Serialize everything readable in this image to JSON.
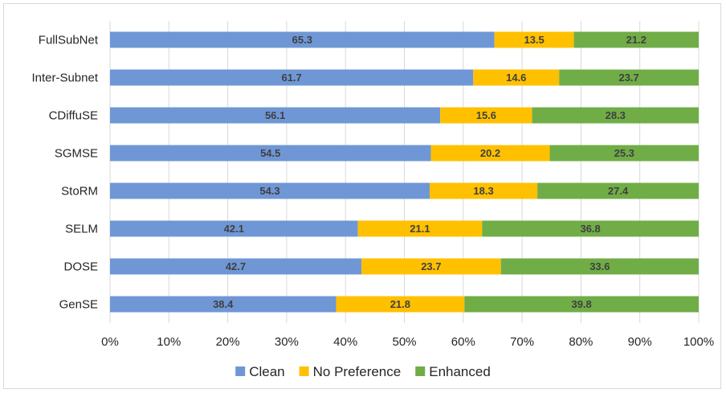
{
  "chart_data": {
    "type": "bar",
    "orientation": "horizontal",
    "stacked": "100%",
    "categories": [
      "FullSubNet",
      "Inter-Subnet",
      "CDiffuSE",
      "SGMSE",
      "StoRM",
      "SELM",
      "DOSE",
      "GenSE"
    ],
    "series": [
      {
        "name": "Clean",
        "color": "#6F97D6",
        "values": [
          65.3,
          61.7,
          56.1,
          54.5,
          54.3,
          42.1,
          42.7,
          38.4
        ]
      },
      {
        "name": "No Preference",
        "color": "#FFC000",
        "values": [
          13.5,
          14.6,
          15.6,
          20.2,
          18.3,
          21.1,
          23.7,
          21.8
        ]
      },
      {
        "name": "Enhanced",
        "color": "#70AD47",
        "values": [
          21.2,
          23.7,
          28.3,
          25.3,
          27.4,
          36.8,
          33.6,
          39.8
        ]
      }
    ],
    "xlim": [
      0,
      100
    ],
    "x_ticks": [
      "0%",
      "10%",
      "20%",
      "30%",
      "40%",
      "50%",
      "60%",
      "70%",
      "80%",
      "90%",
      "100%"
    ],
    "grid": true,
    "legend": "bottom",
    "title": "",
    "xlabel": "",
    "ylabel": ""
  }
}
